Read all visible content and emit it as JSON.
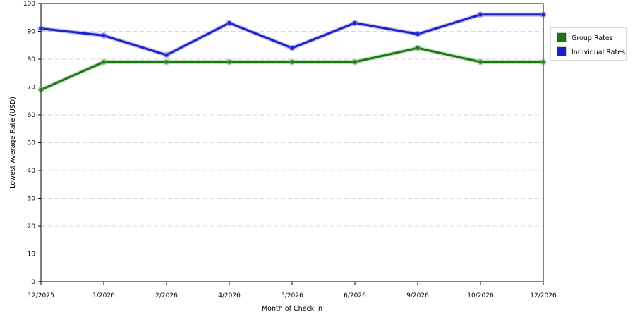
{
  "chart_data": {
    "type": "line",
    "title": "",
    "xlabel": "Month of Check In",
    "ylabel": "Lowest Average Rate (USD)",
    "categories": [
      "12/2025",
      "1/2026",
      "2/2026",
      "4/2026",
      "5/2026",
      "6/2026",
      "9/2026",
      "10/2026",
      "12/2026"
    ],
    "ylim": [
      0,
      100
    ],
    "yticks": [
      0,
      10,
      20,
      30,
      40,
      50,
      60,
      70,
      80,
      90,
      100
    ],
    "grid": true,
    "legend_position": "right",
    "series": [
      {
        "name": "Group Rates",
        "color": "#1a7a12",
        "values": [
          69,
          79,
          79,
          79,
          79,
          79,
          84,
          79,
          79
        ]
      },
      {
        "name": "Individual Rates",
        "color": "#1a22cc",
        "values": [
          91,
          88.5,
          81.5,
          93,
          84,
          93,
          89,
          96,
          96
        ]
      }
    ]
  }
}
